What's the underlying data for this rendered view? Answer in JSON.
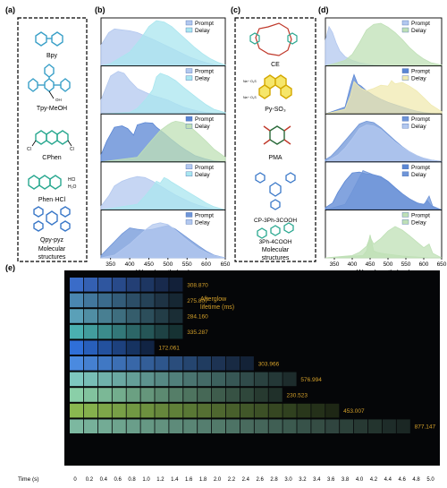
{
  "panel_labels": {
    "a": "(a)",
    "b": "(b)",
    "c": "(c)",
    "d": "(d)",
    "e": "(e)"
  },
  "panel_a": {
    "molecules": [
      "Bpy",
      "Tpy-MeOH",
      "CPhen",
      "Phen·HCl",
      "Qpy-pyz"
    ],
    "phen_salt_labels": [
      "HCl",
      "H₂O"
    ],
    "chem_labels": {
      "oh": "OH",
      "cl": "Cl"
    },
    "caption": [
      "Molecular",
      "structures"
    ]
  },
  "panel_c": {
    "molecules": [
      "CE",
      "Py-SO₃",
      "PMA",
      "CP-3Ph-3COOH",
      "3Ph-4COOH"
    ],
    "na_label": "Na⁺⁻O₃S",
    "caption": [
      "Molecular",
      "structures"
    ]
  },
  "legend": {
    "prompt": "Prompt",
    "delay": "Delay"
  },
  "colors": {
    "prompt": "#b3c8ef",
    "delay_b": "#a9e6ef",
    "delay_d": "#bfe0b6",
    "delay_d_yellow": "#f0eab0",
    "prompt_d_dark": "#6f95d8",
    "prompt_d_blue": "#5a86d4",
    "delay_d_blue2": "#8aaee8"
  },
  "chart_data": [
    {
      "type": "area",
      "panel": "b",
      "xlabel": "Wavelength (nm)",
      "xlim": [
        325,
        650
      ],
      "xticks": [
        350,
        400,
        450,
        500,
        550,
        600,
        650
      ],
      "series": [
        {
          "name": "Prompt",
          "x": [
            325,
            345,
            360,
            380,
            400,
            420,
            440,
            460,
            480,
            500,
            520,
            540,
            560,
            580,
            600,
            620,
            650
          ],
          "values": [
            0.45,
            0.72,
            0.8,
            0.78,
            0.76,
            0.72,
            0.65,
            0.58,
            0.5,
            0.42,
            0.34,
            0.26,
            0.18,
            0.12,
            0.07,
            0.03,
            0
          ]
        },
        {
          "name": "Delay",
          "x": [
            325,
            350,
            400,
            430,
            450,
            470,
            490,
            510,
            530,
            550,
            570,
            590,
            610,
            630,
            650
          ],
          "values": [
            0,
            0.05,
            0.3,
            0.6,
            0.85,
            0.98,
            0.95,
            0.85,
            0.7,
            0.55,
            0.4,
            0.27,
            0.16,
            0.08,
            0.02
          ]
        },
        {
          "name": "Prompt",
          "x": [
            325,
            350,
            370,
            385,
            400,
            420,
            440,
            460,
            480,
            500,
            520,
            540,
            560,
            580,
            600,
            620,
            650
          ],
          "values": [
            0.3,
            0.82,
            0.92,
            0.88,
            0.72,
            0.55,
            0.47,
            0.4,
            0.35,
            0.3,
            0.22,
            0.15,
            0.1,
            0.06,
            0.03,
            0.01,
            0
          ]
        },
        {
          "name": "Delay",
          "x": [
            325,
            400,
            420,
            440,
            460,
            470,
            480,
            500,
            520,
            540,
            560,
            580,
            600,
            620,
            650
          ],
          "values": [
            0,
            0.03,
            0.12,
            0.3,
            0.52,
            0.8,
            0.88,
            0.82,
            0.72,
            0.58,
            0.45,
            0.32,
            0.2,
            0.1,
            0.03
          ]
        },
        {
          "name": "Prompt",
          "x": [
            325,
            340,
            360,
            380,
            395,
            410,
            420,
            440,
            460,
            470,
            490,
            510,
            530,
            550,
            570,
            600,
            620,
            650
          ],
          "values": [
            0.15,
            0.45,
            0.75,
            0.78,
            0.72,
            0.58,
            0.8,
            0.85,
            0.84,
            0.75,
            0.62,
            0.48,
            0.35,
            0.24,
            0.14,
            0.06,
            0.02,
            0
          ]
        },
        {
          "name": "Delay",
          "x": [
            325,
            420,
            450,
            480,
            500,
            510,
            520,
            540,
            560,
            580,
            600,
            620,
            650
          ],
          "values": [
            0,
            0.1,
            0.4,
            0.68,
            0.8,
            0.85,
            0.88,
            0.85,
            0.75,
            0.6,
            0.45,
            0.28,
            0.1
          ]
        },
        {
          "name": "Prompt",
          "x": [
            325,
            345,
            360,
            380,
            400,
            420,
            440,
            460,
            480,
            500,
            520,
            540,
            560,
            580,
            600,
            620,
            650
          ],
          "values": [
            0.08,
            0.3,
            0.52,
            0.62,
            0.68,
            0.72,
            0.7,
            0.62,
            0.52,
            0.42,
            0.32,
            0.24,
            0.16,
            0.1,
            0.05,
            0.02,
            0
          ]
        },
        {
          "name": "Delay",
          "x": [
            325,
            420,
            440,
            460,
            470,
            480,
            490,
            500,
            510,
            520,
            540,
            560,
            580,
            600,
            620,
            650
          ],
          "values": [
            0,
            0.12,
            0.3,
            0.5,
            0.62,
            0.58,
            0.7,
            0.66,
            0.6,
            0.55,
            0.45,
            0.35,
            0.25,
            0.15,
            0.07,
            0
          ]
        },
        {
          "name": "Prompt",
          "x": [
            325,
            340,
            360,
            380,
            400,
            420,
            440,
            460,
            480,
            500,
            520,
            540,
            560,
            580,
            600,
            620,
            650
          ],
          "values": [
            0.05,
            0.18,
            0.35,
            0.52,
            0.65,
            0.62,
            0.6,
            0.62,
            0.66,
            0.7,
            0.62,
            0.5,
            0.38,
            0.26,
            0.15,
            0.06,
            0
          ]
        },
        {
          "name": "Delay",
          "x": [
            325,
            360,
            380,
            400,
            420,
            440,
            460,
            480,
            500,
            520,
            540,
            560,
            580,
            600,
            620,
            650
          ],
          "values": [
            0,
            0.06,
            0.18,
            0.3,
            0.45,
            0.6,
            0.72,
            0.76,
            0.72,
            0.6,
            0.45,
            0.32,
            0.2,
            0.12,
            0.05,
            0
          ]
        }
      ]
    },
    {
      "type": "area",
      "panel": "d",
      "xlabel": "Wavelength (nm)",
      "xlim": [
        325,
        650
      ],
      "xticks": [
        350,
        400,
        450,
        500,
        550,
        600,
        650
      ],
      "series": [
        {
          "name": "Prompt",
          "x": [
            325,
            335,
            345,
            355,
            365,
            380,
            400,
            420,
            440,
            460,
            480,
            500,
            520,
            540,
            560,
            580,
            600,
            620,
            650
          ],
          "values": [
            0.55,
            0.85,
            0.72,
            0.5,
            0.33,
            0.2,
            0.12,
            0.07,
            0.04,
            0.02,
            0.01,
            0,
            0,
            0,
            0,
            0,
            0,
            0,
            0
          ]
        },
        {
          "name": "Delay",
          "x": [
            325,
            350,
            380,
            400,
            420,
            440,
            460,
            480,
            500,
            520,
            540,
            560,
            580,
            600,
            620,
            650
          ],
          "values": [
            0,
            0.05,
            0.12,
            0.25,
            0.5,
            0.78,
            0.9,
            0.92,
            0.84,
            0.72,
            0.57,
            0.4,
            0.26,
            0.15,
            0.07,
            0.02
          ]
        },
        {
          "name": "Prompt",
          "x": [
            325,
            380,
            395,
            405,
            415,
            425,
            440,
            460,
            480,
            500,
            520,
            540,
            560,
            580,
            600,
            620,
            650
          ],
          "values": [
            0,
            0.15,
            0.6,
            0.85,
            0.65,
            0.6,
            0.5,
            0.4,
            0.32,
            0.25,
            0.2,
            0.15,
            0.1,
            0.06,
            0.03,
            0.01,
            0
          ]
        },
        {
          "name": "Delay",
          "x": [
            325,
            380,
            395,
            405,
            415,
            425,
            440,
            460,
            480,
            500,
            510,
            520,
            540,
            560,
            580,
            600,
            620,
            650
          ],
          "values": [
            0,
            0.1,
            0.4,
            0.7,
            0.62,
            0.55,
            0.5,
            0.55,
            0.62,
            0.6,
            0.72,
            0.65,
            0.68,
            0.6,
            0.5,
            0.35,
            0.2,
            0.05
          ]
        },
        {
          "name": "Prompt",
          "x": [
            325,
            340,
            360,
            380,
            400,
            420,
            440,
            460,
            480,
            500,
            520,
            540,
            560,
            580,
            600,
            620,
            650
          ],
          "values": [
            0.05,
            0.12,
            0.28,
            0.46,
            0.64,
            0.82,
            0.88,
            0.85,
            0.74,
            0.6,
            0.46,
            0.33,
            0.22,
            0.14,
            0.08,
            0.04,
            0.01
          ]
        },
        {
          "name": "Delay",
          "x": [
            325,
            360,
            380,
            400,
            420,
            440,
            460,
            480,
            500,
            520,
            540,
            560,
            580,
            600,
            620,
            650
          ],
          "values": [
            0,
            0.15,
            0.3,
            0.5,
            0.72,
            0.8,
            0.78,
            0.7,
            0.56,
            0.43,
            0.32,
            0.22,
            0.14,
            0.08,
            0.04,
            0
          ]
        },
        {
          "name": "Prompt",
          "x": [
            325,
            345,
            360,
            380,
            400,
            420,
            440,
            460,
            480,
            500,
            520,
            540,
            560,
            580,
            600,
            610,
            620,
            630,
            650
          ],
          "values": [
            0.05,
            0.15,
            0.38,
            0.62,
            0.8,
            0.82,
            0.78,
            0.76,
            0.72,
            0.62,
            0.48,
            0.35,
            0.24,
            0.15,
            0.12,
            0.2,
            0.1,
            0.04,
            0
          ]
        },
        {
          "name": "Delay",
          "x": [
            325,
            380,
            400,
            420,
            430,
            440,
            460,
            480,
            500,
            520,
            540,
            560,
            580,
            600,
            615,
            625,
            650
          ],
          "values": [
            0,
            0.12,
            0.4,
            0.7,
            0.85,
            0.82,
            0.76,
            0.7,
            0.6,
            0.46,
            0.34,
            0.24,
            0.16,
            0.1,
            0.3,
            0.08,
            0
          ]
        },
        {
          "name": "Prompt",
          "x": [
            325,
            430,
            440,
            450,
            460,
            470,
            480,
            500,
            520,
            540,
            560,
            580,
            600,
            620,
            650
          ],
          "values": [
            0,
            0.05,
            0.15,
            0.5,
            0.15,
            0.12,
            0.1,
            0.08,
            0.06,
            0.04,
            0.03,
            0.02,
            0.01,
            0,
            0
          ]
        },
        {
          "name": "Delay",
          "x": [
            325,
            400,
            420,
            440,
            450,
            460,
            480,
            500,
            520,
            540,
            560,
            580,
            600,
            615,
            625,
            650
          ],
          "values": [
            0,
            0.05,
            0.12,
            0.25,
            0.45,
            0.3,
            0.42,
            0.58,
            0.68,
            0.6,
            0.48,
            0.35,
            0.22,
            0.3,
            0.1,
            0
          ]
        }
      ]
    },
    {
      "type": "table",
      "panel": "e",
      "xlabel": "Time (s)",
      "xticks": [
        "0",
        "0.2",
        "0.4",
        "0.6",
        "0.8",
        "1.0",
        "1.2",
        "1.4",
        "1.6",
        "1.8",
        "2.0",
        "2.2",
        "2.4",
        "2.6",
        "2.8",
        "3.0",
        "3.2",
        "3.4",
        "3.6",
        "3.8",
        "4.0",
        "4.2",
        "4.4",
        "4.6",
        "4.8",
        "5.0"
      ],
      "annotation": [
        "Afterglow",
        "lifetime (ms)"
      ],
      "rows": [
        {
          "name": "PMA",
          "lifetime": "308.870",
          "lifetime_ms": 308.87,
          "color": "#3a6cc8",
          "frames": 8
        },
        {
          "name": "CE",
          "lifetime": "275.807",
          "lifetime_ms": 275.807,
          "color": "#4a86b0",
          "frames": 8
        },
        {
          "name": "Bpy",
          "lifetime": "284.160",
          "lifetime_ms": 284.16,
          "color": "#5aa0b8",
          "frames": 8
        },
        {
          "name": "CPhen",
          "lifetime": "335.287",
          "lifetime_ms": 335.287,
          "color": "#4ab0b0",
          "frames": 8
        },
        {
          "name": "Qpy-pyz",
          "lifetime": "172.061",
          "lifetime_ms": 172.061,
          "color": "#2f6fd8",
          "frames": 6
        },
        {
          "name": "Tpy-MeOH",
          "lifetime": "303.966",
          "lifetime_ms": 303.966,
          "color": "#4a8ae0",
          "frames": 13
        },
        {
          "name": "Phen·HCl",
          "lifetime": "576.994",
          "lifetime_ms": 576.994,
          "color": "#7ec8c0",
          "frames": 16
        },
        {
          "name": "3Ph-4COOH",
          "lifetime": "230.523",
          "lifetime_ms": 230.523,
          "color": "#8acfa8",
          "frames": 15
        },
        {
          "name": "Py-SO₃",
          "lifetime": "453.007",
          "lifetime_ms": 453.007,
          "color": "#8ab850",
          "frames": 19
        },
        {
          "name": "CP-3Ph-3COOH",
          "lifetime": "877.147",
          "lifetime_ms": 877.147,
          "color": "#7cb8a0",
          "frames": 24
        }
      ]
    }
  ]
}
